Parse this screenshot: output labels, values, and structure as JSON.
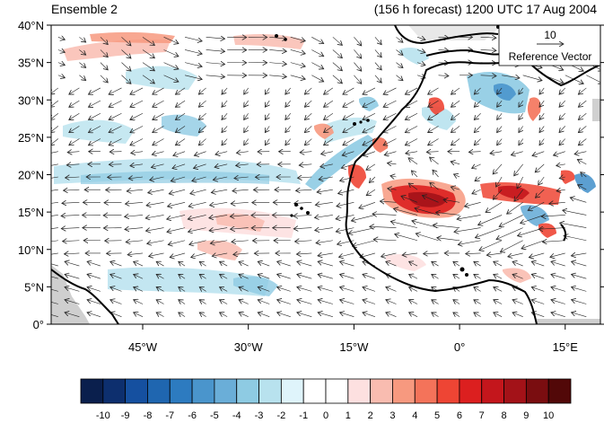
{
  "header": {
    "left_title": "Ensemble 2",
    "right_title": "(156 h forecast) 1200 UTC 17 Aug 2004"
  },
  "map": {
    "lon_range": [
      -58,
      20
    ],
    "lat_range": [
      0,
      40
    ],
    "lat_ticks": [
      {
        "value": 0,
        "label": "0°"
      },
      {
        "value": 5,
        "label": "5°N"
      },
      {
        "value": 10,
        "label": "10°N"
      },
      {
        "value": 15,
        "label": "15°N"
      },
      {
        "value": 20,
        "label": "20°N"
      },
      {
        "value": 25,
        "label": "25°N"
      },
      {
        "value": 30,
        "label": "30°N"
      },
      {
        "value": 35,
        "label": "35°N"
      },
      {
        "value": 40,
        "label": "40°N"
      }
    ],
    "lon_ticks": [
      {
        "value": -45,
        "label": "45°W"
      },
      {
        "value": -30,
        "label": "30°W"
      },
      {
        "value": -15,
        "label": "15°W"
      },
      {
        "value": 0,
        "label": "0°"
      },
      {
        "value": 15,
        "label": "15°E"
      }
    ]
  },
  "reference_vector": {
    "value": "10",
    "label": "Reference Vector"
  },
  "colorbar": {
    "colors": [
      "#0a1f4d",
      "#0d2f6e",
      "#1550a0",
      "#1f66b0",
      "#2d7bc0",
      "#4a95cc",
      "#6aaed8",
      "#8ecbe3",
      "#b8e2ee",
      "#dff4fb",
      "#ffffff",
      "#ffffff",
      "#fde0e0",
      "#f9bcb0",
      "#f7997f",
      "#f4735a",
      "#ee4534",
      "#dc1f1f",
      "#c4161c",
      "#a31218",
      "#7a0d10",
      "#520808"
    ],
    "labels": [
      "-10",
      "-9",
      "-8",
      "-7",
      "-6",
      "-5",
      "-4",
      "-3",
      "-2",
      "-1",
      "0",
      "1",
      "2",
      "3",
      "4",
      "5",
      "6",
      "7",
      "8",
      "9",
      "10"
    ]
  }
}
